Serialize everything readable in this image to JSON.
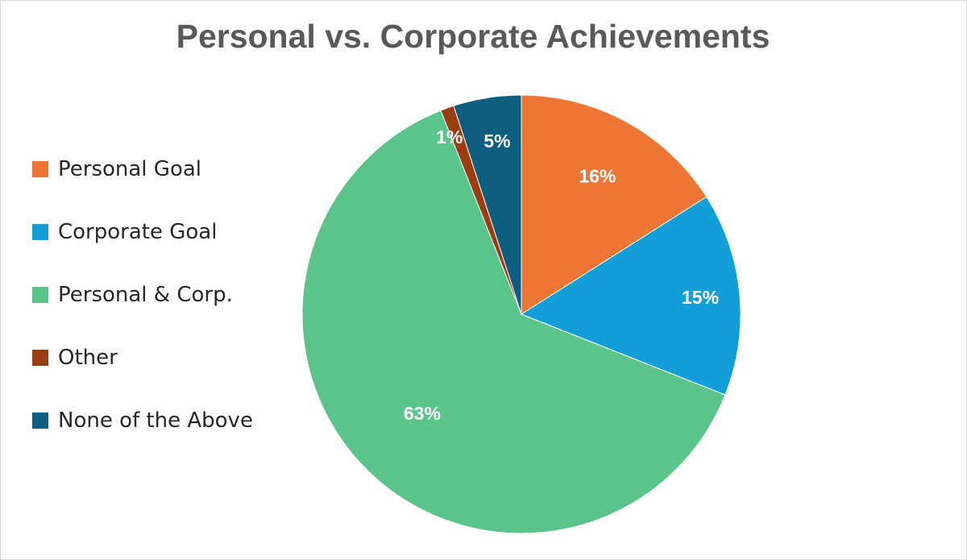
{
  "chart_data": {
    "type": "pie",
    "title": "Personal vs. Corporate Achievements",
    "categories": [
      "Personal Goal",
      "Corporate Goal",
      "Personal & Corp.",
      "Other",
      "None of the Above"
    ],
    "values": [
      16,
      15,
      63,
      1,
      5
    ],
    "labels": [
      "16%",
      "15%",
      "63%",
      "1%",
      "5%"
    ],
    "colors": [
      "#ED7635",
      "#129FD9",
      "#5BC48A",
      "#9A3E11",
      "#0E5E80"
    ],
    "legend": "left",
    "start_angle_deg": 0,
    "direction": "clockwise"
  }
}
